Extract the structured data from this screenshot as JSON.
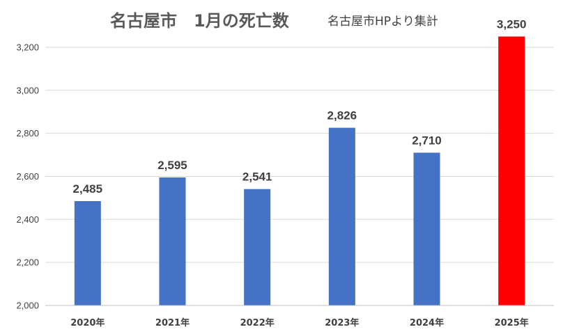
{
  "chart_data": {
    "type": "bar",
    "title": "名古屋市　1月の死亡数",
    "subtitle": "名古屋市HPより集計",
    "categories": [
      "2020年",
      "2021年",
      "2022年",
      "2023年",
      "2024年",
      "2025年"
    ],
    "values": [
      2485,
      2595,
      2541,
      2826,
      2710,
      3250
    ],
    "data_labels": [
      "2,485",
      "2,595",
      "2,541",
      "2,826",
      "2,710",
      "3,250"
    ],
    "ylim": [
      2000,
      3300
    ],
    "yticks": [
      2000,
      2200,
      2400,
      2600,
      2800,
      3000,
      3200
    ],
    "ytick_labels": [
      "2,000",
      "2,200",
      "2,400",
      "2,600",
      "2,800",
      "3,000",
      "3,200"
    ],
    "grid": true,
    "colors": {
      "default_bar": "#4472c4",
      "highlight_bar": "#ff0000"
    },
    "highlight_index": 5
  }
}
